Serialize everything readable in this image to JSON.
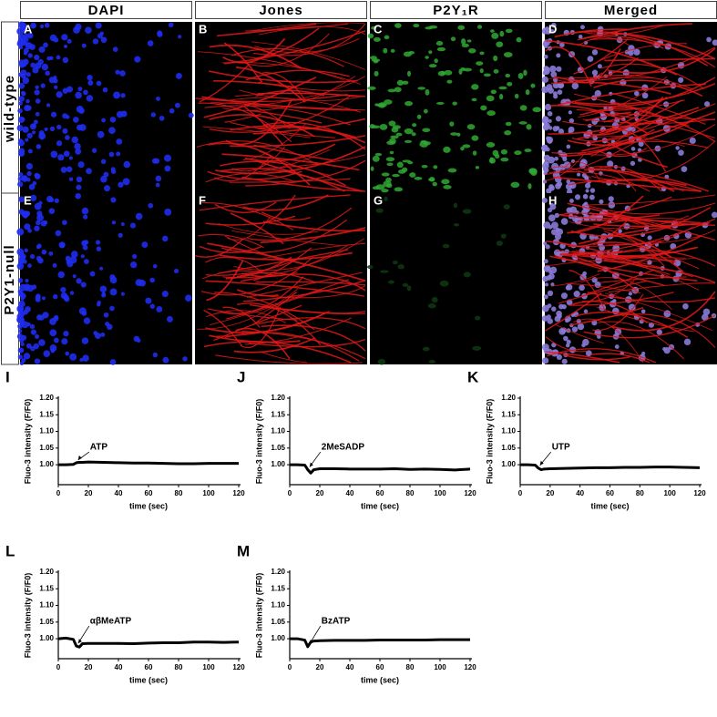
{
  "figure": {
    "columns": [
      "DAPI",
      "Jones",
      "P2Y₁R",
      "Merged"
    ],
    "rows": [
      "wild-type",
      "P2Y1-null"
    ],
    "panels": [
      [
        "A",
        "B",
        "C",
        "D"
      ],
      [
        "E",
        "F",
        "G",
        "H"
      ]
    ]
  },
  "chart_data": [
    {
      "type": "line",
      "panel": "I",
      "annotation": "ATP",
      "xlabel": "time (sec)",
      "ylabel": "Fluo-3 intensity (F/F0)",
      "x": [
        0,
        5,
        10,
        12,
        14,
        16,
        20,
        30,
        40,
        50,
        60,
        70,
        80,
        90,
        100,
        110,
        120
      ],
      "values": [
        1,
        1,
        1.001,
        1.006,
        1.007,
        1.007,
        1.008,
        1.007,
        1.006,
        1.005,
        1.005,
        1.004,
        1.003,
        1.003,
        1.004,
        1.004,
        1.004
      ],
      "color": "#000000",
      "xlim": [
        0,
        120
      ],
      "xticks": [
        0,
        20,
        40,
        60,
        80,
        100,
        120
      ],
      "ylim": [
        0.94,
        1.2
      ],
      "yticks": [
        {
          "value": 1,
          "label": "1.00"
        },
        {
          "value": 1.05,
          "label": "1.05"
        },
        {
          "value": 1.1,
          "label": "1.10"
        },
        {
          "value": 1.15,
          "label": "1.15"
        },
        {
          "value": 1.2,
          "label": "1.20"
        }
      ]
    },
    {
      "type": "line",
      "panel": "J",
      "annotation": "2MeSADP",
      "xlabel": "time (sec)",
      "ylabel": "Fluo-3 intensity (F/F0)",
      "x": [
        0,
        5,
        10,
        12,
        14,
        16,
        20,
        30,
        40,
        50,
        60,
        70,
        80,
        90,
        100,
        110,
        120
      ],
      "values": [
        1,
        1,
        0.999,
        0.985,
        0.975,
        0.985,
        0.988,
        0.988,
        0.987,
        0.987,
        0.987,
        0.988,
        0.986,
        0.987,
        0.986,
        0.984,
        0.987
      ],
      "color": "#000000",
      "xlim": [
        0,
        120
      ],
      "xticks": [
        0,
        20,
        40,
        60,
        80,
        100,
        120
      ],
      "ylim": [
        0.94,
        1.2
      ],
      "yticks": [
        {
          "value": 1,
          "label": "1.00"
        },
        {
          "value": 1.05,
          "label": "1.05"
        },
        {
          "value": 1.1,
          "label": "1.10"
        },
        {
          "value": 1.15,
          "label": "1.15"
        },
        {
          "value": 1.2,
          "label": "1.20"
        }
      ]
    },
    {
      "type": "line",
      "panel": "K",
      "annotation": "UTP",
      "xlabel": "time (sec)",
      "ylabel": "Fluo-3 intensity (F/F0)",
      "x": [
        0,
        5,
        10,
        12,
        14,
        16,
        20,
        30,
        40,
        50,
        60,
        70,
        80,
        90,
        100,
        110,
        120
      ],
      "values": [
        1,
        1,
        0.999,
        0.99,
        0.985,
        0.987,
        0.988,
        0.989,
        0.99,
        0.991,
        0.991,
        0.992,
        0.992,
        0.993,
        0.993,
        0.992,
        0.991
      ],
      "color": "#000000",
      "xlim": [
        0,
        120
      ],
      "xticks": [
        0,
        20,
        40,
        60,
        80,
        100,
        120
      ],
      "ylim": [
        0.94,
        1.2
      ],
      "yticks": [
        {
          "value": 1,
          "label": "1.00"
        },
        {
          "value": 1.05,
          "label": "1.05"
        },
        {
          "value": 1.1,
          "label": "1.10"
        },
        {
          "value": 1.15,
          "label": "1.15"
        },
        {
          "value": 1.2,
          "label": "1.20"
        }
      ]
    },
    {
      "type": "line",
      "panel": "L",
      "annotation": "αβMeATP",
      "xlabel": "time (sec)",
      "ylabel": "Fluo-3 intensity (F/F0)",
      "x": [
        0,
        5,
        10,
        12,
        14,
        16,
        20,
        30,
        40,
        50,
        60,
        70,
        80,
        90,
        100,
        110,
        120
      ],
      "values": [
        1,
        1.002,
        0.998,
        0.978,
        0.975,
        0.985,
        0.986,
        0.986,
        0.986,
        0.985,
        0.987,
        0.988,
        0.988,
        0.99,
        0.99,
        0.989,
        0.99
      ],
      "color": "#000000",
      "xlim": [
        0,
        120
      ],
      "xticks": [
        0,
        20,
        40,
        60,
        80,
        100,
        120
      ],
      "ylim": [
        0.94,
        1.2
      ],
      "yticks": [
        {
          "value": 1,
          "label": "1.00"
        },
        {
          "value": 1.05,
          "label": "1.05"
        },
        {
          "value": 1.1,
          "label": "1.10"
        },
        {
          "value": 1.15,
          "label": "1.15"
        },
        {
          "value": 1.2,
          "label": "1.20"
        }
      ]
    },
    {
      "type": "line",
      "panel": "M",
      "annotation": "BzATP",
      "xlabel": "time (sec)",
      "ylabel": "Fluo-3 intensity (F/F0)",
      "x": [
        0,
        5,
        10,
        12,
        14,
        16,
        20,
        30,
        40,
        50,
        60,
        70,
        80,
        90,
        100,
        110,
        120
      ],
      "values": [
        1,
        1,
        0.996,
        0.976,
        0.99,
        0.993,
        0.994,
        0.995,
        0.995,
        0.995,
        0.996,
        0.996,
        0.996,
        0.996,
        0.997,
        0.997,
        0.997
      ],
      "color": "#000000",
      "xlim": [
        0,
        120
      ],
      "xticks": [
        0,
        20,
        40,
        60,
        80,
        100,
        120
      ],
      "ylim": [
        0.94,
        1.2
      ],
      "yticks": [
        {
          "value": 1,
          "label": "1.00"
        },
        {
          "value": 1.05,
          "label": "1.05"
        },
        {
          "value": 1.1,
          "label": "1.10"
        },
        {
          "value": 1.15,
          "label": "1.15"
        },
        {
          "value": 1.2,
          "label": "1.20"
        }
      ]
    }
  ]
}
